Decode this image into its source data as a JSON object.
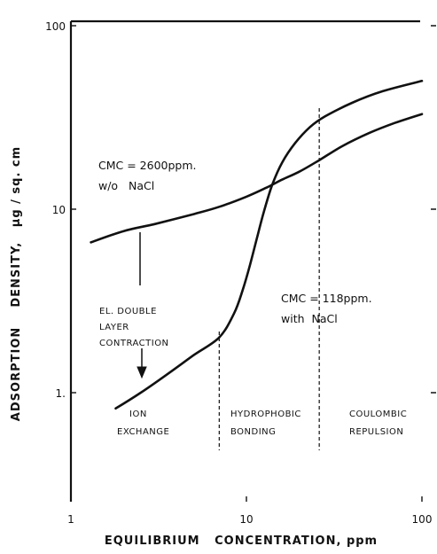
{
  "chart_data": {
    "type": "line",
    "xlabel": "EQUILIBRIUM   CONCENTRATION, ppm",
    "ylabel": "ADSORPTION    DENSITY,   μg / sq. cm",
    "xscale": "log",
    "yscale": "log",
    "xlim": [
      1,
      100
    ],
    "ylim": [
      0.1,
      100
    ],
    "x_ticks": [
      {
        "value": 1,
        "label": "1"
      },
      {
        "value": 10,
        "label": "10"
      },
      {
        "value": 100,
        "label": "100"
      }
    ],
    "y_ticks": [
      {
        "value": 1,
        "label": "1."
      },
      {
        "value": 10,
        "label": "10"
      },
      {
        "value": 100,
        "label": "100"
      }
    ],
    "series": [
      {
        "x": [
          1.3,
          2,
          3,
          5,
          7,
          10,
          13,
          16,
          20,
          26,
          35,
          50,
          70,
          100
        ],
        "y": [
          6.6,
          7.6,
          8.3,
          9.4,
          10.3,
          11.7,
          13.1,
          14.5,
          16,
          18.5,
          22,
          26,
          29.5,
          33
        ]
      },
      {
        "x": [
          1.8,
          2.5,
          3.5,
          5,
          7,
          8.5,
          9.5,
          10.5,
          11.5,
          12.5,
          14,
          16,
          19,
          23,
          28,
          40,
          60,
          100
        ],
        "y": [
          0.82,
          1.0,
          1.25,
          1.6,
          2.0,
          2.7,
          3.6,
          5.0,
          7.0,
          9.5,
          13.5,
          18,
          23,
          28,
          32,
          38,
          44,
          50
        ]
      }
    ],
    "annotations": [
      {
        "lines": [
          "CMC = 2600ppm.",
          "w/o   NaCl"
        ]
      },
      {
        "lines": [
          "CMC = 118ppm.",
          "with  NaCl"
        ]
      },
      {
        "lines": [
          "EL. DOUBLE",
          "LAYER",
          "CONTRACTION"
        ]
      },
      {
        "lines": [
          "ION",
          "EXCHANGE"
        ]
      },
      {
        "lines": [
          "HYDROPHOBIC",
          "BONDING"
        ]
      },
      {
        "lines": [
          "COULOMBIC",
          "REPULSION"
        ]
      }
    ],
    "region_boundaries_x": [
      7,
      26
    ],
    "colors": {
      "ink": "#111111",
      "background": "#ffffff"
    }
  }
}
